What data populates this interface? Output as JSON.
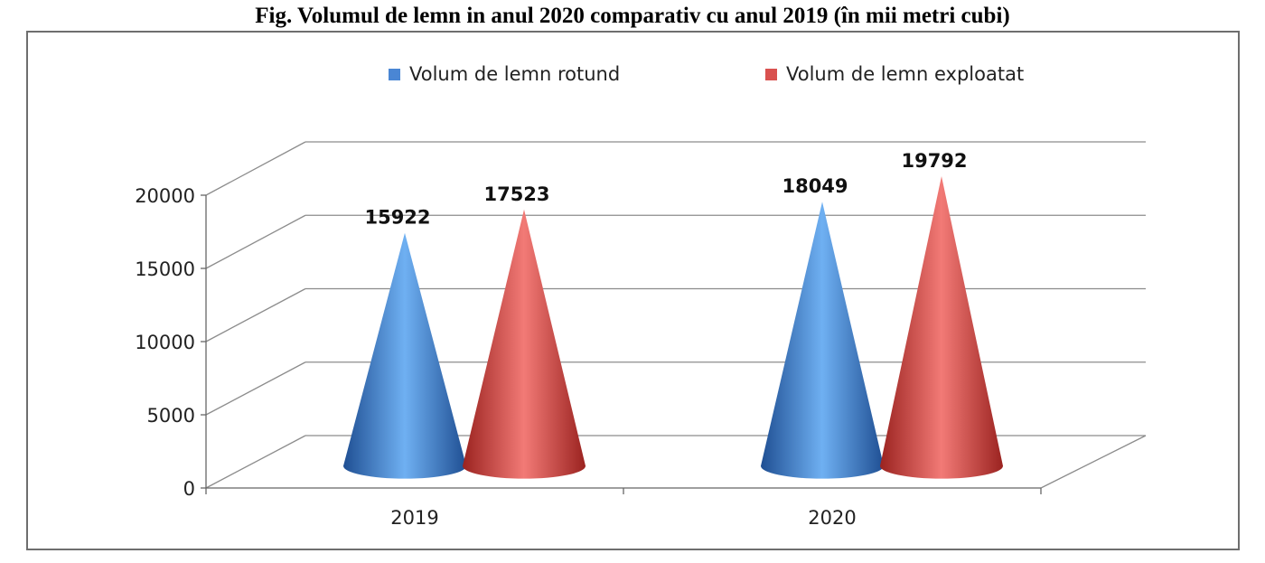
{
  "figure": {
    "title": "Fig. Volumul de lemn in anul 2020 comparativ cu anul 2019 (în mii metri cubi)"
  },
  "chart_data": {
    "type": "bar",
    "style": "3d-cone",
    "categories": [
      "2019",
      "2020"
    ],
    "series": [
      {
        "name": "Volum de lemn rotund",
        "values": [
          15922,
          18049
        ],
        "color": "#4a86d4"
      },
      {
        "name": "Volum de lemn exploatat",
        "values": [
          17523,
          19792
        ],
        "color": "#d9514f"
      }
    ],
    "yticks": [
      "0",
      "5000",
      "10000",
      "15000",
      "20000"
    ],
    "ylim": [
      0,
      20000
    ],
    "grid": true,
    "legend": "top"
  }
}
